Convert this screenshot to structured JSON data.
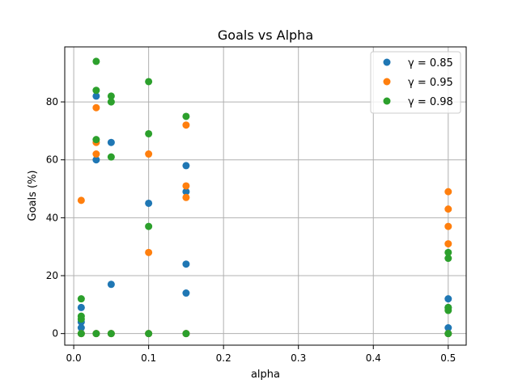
{
  "chart_data": {
    "type": "scatter",
    "title": "Goals vs Alpha",
    "xlabel": "alpha",
    "ylabel": "Goals (%)",
    "xlim": [
      -0.012,
      0.524
    ],
    "ylim": [
      -4,
      99
    ],
    "xticks": [
      0.0,
      0.1,
      0.2,
      0.3,
      0.4,
      0.5
    ],
    "xtick_labels": [
      "0.0",
      "0.1",
      "0.2",
      "0.3",
      "0.4",
      "0.5"
    ],
    "yticks": [
      0,
      20,
      40,
      60,
      80
    ],
    "ytick_labels": [
      "0",
      "20",
      "40",
      "60",
      "80"
    ],
    "grid": true,
    "legend_position": "top-right",
    "series": [
      {
        "name": "γ = 0.85",
        "color": "#1f77b4",
        "points": [
          [
            0.01,
            0
          ],
          [
            0.01,
            2
          ],
          [
            0.01,
            4
          ],
          [
            0.01,
            9
          ],
          [
            0.03,
            0
          ],
          [
            0.03,
            60
          ],
          [
            0.03,
            82
          ],
          [
            0.05,
            0
          ],
          [
            0.05,
            17
          ],
          [
            0.05,
            66
          ],
          [
            0.1,
            0
          ],
          [
            0.1,
            45
          ],
          [
            0.15,
            0
          ],
          [
            0.15,
            14
          ],
          [
            0.15,
            24
          ],
          [
            0.15,
            49
          ],
          [
            0.15,
            58
          ],
          [
            0.5,
            0
          ],
          [
            0.5,
            2
          ],
          [
            0.5,
            9
          ],
          [
            0.5,
            12
          ]
        ]
      },
      {
        "name": "γ = 0.95",
        "color": "#ff7f0e",
        "points": [
          [
            0.01,
            0
          ],
          [
            0.01,
            46
          ],
          [
            0.03,
            0
          ],
          [
            0.03,
            62
          ],
          [
            0.03,
            66
          ],
          [
            0.03,
            78
          ],
          [
            0.05,
            0
          ],
          [
            0.1,
            0
          ],
          [
            0.1,
            28
          ],
          [
            0.1,
            62
          ],
          [
            0.15,
            0
          ],
          [
            0.15,
            47
          ],
          [
            0.15,
            51
          ],
          [
            0.15,
            72
          ],
          [
            0.5,
            0
          ],
          [
            0.5,
            31
          ],
          [
            0.5,
            37
          ],
          [
            0.5,
            43
          ],
          [
            0.5,
            49
          ]
        ]
      },
      {
        "name": "γ = 0.98",
        "color": "#2ca02c",
        "points": [
          [
            0.01,
            0
          ],
          [
            0.01,
            5
          ],
          [
            0.01,
            6
          ],
          [
            0.01,
            12
          ],
          [
            0.03,
            0
          ],
          [
            0.03,
            67
          ],
          [
            0.03,
            84
          ],
          [
            0.03,
            94
          ],
          [
            0.05,
            0
          ],
          [
            0.05,
            61
          ],
          [
            0.05,
            80
          ],
          [
            0.05,
            82
          ],
          [
            0.1,
            0
          ],
          [
            0.1,
            37
          ],
          [
            0.1,
            69
          ],
          [
            0.1,
            87
          ],
          [
            0.15,
            0
          ],
          [
            0.15,
            75
          ],
          [
            0.5,
            0
          ],
          [
            0.5,
            8
          ],
          [
            0.5,
            9
          ],
          [
            0.5,
            26
          ],
          [
            0.5,
            28
          ]
        ]
      }
    ]
  }
}
